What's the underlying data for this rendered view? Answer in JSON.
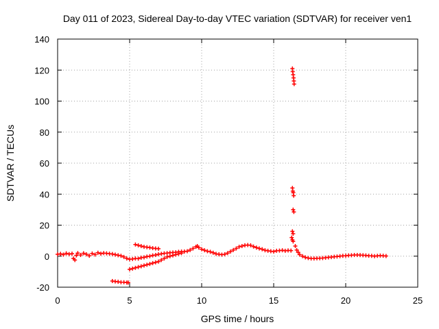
{
  "chart_data": {
    "type": "scatter",
    "title": "Day 011 of 2023, Sidereal Day-to-day VTEC variation (SDTVAR) for receiver ven1",
    "xlabel": "GPS time / hours",
    "ylabel": "SDTVAR / TECUs",
    "xlim": [
      0,
      25
    ],
    "ylim": [
      -20,
      140
    ],
    "xticks": [
      "0",
      "5",
      "10",
      "15",
      "20",
      "25"
    ],
    "yticks": [
      "-20",
      "0",
      "20",
      "40",
      "60",
      "80",
      "100",
      "120",
      "140"
    ],
    "grid": true,
    "marker": "plus",
    "color": "#ff0000",
    "series": [
      {
        "name": "SDTVAR",
        "points": [
          [
            0.0,
            1.2
          ],
          [
            0.2,
            1.5
          ],
          [
            0.4,
            1.0
          ],
          [
            0.6,
            1.8
          ],
          [
            0.8,
            1.3
          ],
          [
            1.0,
            1.6
          ],
          [
            1.1,
            -1.5
          ],
          [
            1.2,
            -2.5
          ],
          [
            1.3,
            0.5
          ],
          [
            1.4,
            2.0
          ],
          [
            1.6,
            0.8
          ],
          [
            1.8,
            1.9
          ],
          [
            2.0,
            1.2
          ],
          [
            2.2,
            0.3
          ],
          [
            2.4,
            1.7
          ],
          [
            2.6,
            1.0
          ],
          [
            2.8,
            2.2
          ],
          [
            3.0,
            1.6
          ],
          [
            3.2,
            2.0
          ],
          [
            3.4,
            1.8
          ],
          [
            3.6,
            1.6
          ],
          [
            3.8,
            1.4
          ],
          [
            4.0,
            1.0
          ],
          [
            4.2,
            0.6
          ],
          [
            4.4,
            0.2
          ],
          [
            4.6,
            -0.5
          ],
          [
            4.8,
            -1.5
          ],
          [
            5.0,
            -2.0
          ],
          [
            5.2,
            -1.8
          ],
          [
            5.4,
            -1.5
          ],
          [
            5.6,
            -1.6
          ],
          [
            5.8,
            -1.0
          ],
          [
            6.0,
            -0.8
          ],
          [
            6.2,
            -0.3
          ],
          [
            6.4,
            0.0
          ],
          [
            6.6,
            0.5
          ],
          [
            6.8,
            0.8
          ],
          [
            7.0,
            1.2
          ],
          [
            7.2,
            1.5
          ],
          [
            7.4,
            1.8
          ],
          [
            7.6,
            2.0
          ],
          [
            7.8,
            2.2
          ],
          [
            8.0,
            2.4
          ],
          [
            8.2,
            2.5
          ],
          [
            8.4,
            2.8
          ],
          [
            8.6,
            3.0
          ],
          [
            8.8,
            3.0
          ],
          [
            9.0,
            3.2
          ],
          [
            9.2,
            4.0
          ],
          [
            9.4,
            5.0
          ],
          [
            9.6,
            6.0
          ],
          [
            9.7,
            6.5
          ],
          [
            9.8,
            5.5
          ],
          [
            10.0,
            4.5
          ],
          [
            10.2,
            3.8
          ],
          [
            10.4,
            3.2
          ],
          [
            10.6,
            2.8
          ],
          [
            10.8,
            2.2
          ],
          [
            11.0,
            1.5
          ],
          [
            11.2,
            1.2
          ],
          [
            11.4,
            1.0
          ],
          [
            11.6,
            1.2
          ],
          [
            11.8,
            2.0
          ],
          [
            12.0,
            3.0
          ],
          [
            12.2,
            4.0
          ],
          [
            12.4,
            5.0
          ],
          [
            12.6,
            6.0
          ],
          [
            12.8,
            6.5
          ],
          [
            13.0,
            7.0
          ],
          [
            13.2,
            7.2
          ],
          [
            13.4,
            7.0
          ],
          [
            13.6,
            6.2
          ],
          [
            13.8,
            5.5
          ],
          [
            14.0,
            5.0
          ],
          [
            14.2,
            4.5
          ],
          [
            14.4,
            3.8
          ],
          [
            14.6,
            3.5
          ],
          [
            14.8,
            3.2
          ],
          [
            15.0,
            3.0
          ],
          [
            15.2,
            3.5
          ],
          [
            15.4,
            3.6
          ],
          [
            15.6,
            3.8
          ],
          [
            15.8,
            3.5
          ],
          [
            16.0,
            3.7
          ],
          [
            16.2,
            3.6
          ],
          [
            16.3,
            121
          ],
          [
            16.32,
            119
          ],
          [
            16.35,
            117
          ],
          [
            16.38,
            115
          ],
          [
            16.4,
            113
          ],
          [
            16.42,
            111
          ],
          [
            16.3,
            44
          ],
          [
            16.33,
            42
          ],
          [
            16.36,
            41
          ],
          [
            16.39,
            39
          ],
          [
            16.35,
            30
          ],
          [
            16.4,
            28.5
          ],
          [
            16.3,
            16
          ],
          [
            16.35,
            14.5
          ],
          [
            16.25,
            12
          ],
          [
            16.3,
            10.5
          ],
          [
            16.35,
            9.5
          ],
          [
            16.5,
            6.5
          ],
          [
            16.6,
            4.0
          ],
          [
            16.7,
            2.5
          ],
          [
            16.8,
            1.0
          ],
          [
            17.0,
            0.0
          ],
          [
            17.2,
            -0.8
          ],
          [
            17.4,
            -1.2
          ],
          [
            17.6,
            -1.5
          ],
          [
            17.8,
            -1.5
          ],
          [
            18.0,
            -1.4
          ],
          [
            18.2,
            -1.3
          ],
          [
            18.4,
            -1.2
          ],
          [
            18.6,
            -1.0
          ],
          [
            18.8,
            -0.8
          ],
          [
            19.0,
            -0.6
          ],
          [
            19.2,
            -0.4
          ],
          [
            19.4,
            -0.2
          ],
          [
            19.6,
            0.0
          ],
          [
            19.8,
            0.2
          ],
          [
            20.0,
            0.3
          ],
          [
            20.2,
            0.5
          ],
          [
            20.4,
            0.6
          ],
          [
            20.6,
            0.8
          ],
          [
            20.8,
            0.8
          ],
          [
            21.0,
            0.7
          ],
          [
            21.2,
            0.6
          ],
          [
            21.4,
            0.5
          ],
          [
            21.6,
            0.3
          ],
          [
            21.8,
            0.2
          ],
          [
            22.0,
            0.0
          ],
          [
            22.2,
            0.2
          ],
          [
            22.4,
            0.4
          ],
          [
            22.6,
            0.3
          ],
          [
            22.8,
            0.1
          ],
          [
            5.4,
            7.5
          ],
          [
            5.6,
            7.0
          ],
          [
            5.8,
            6.5
          ],
          [
            6.0,
            6.0
          ],
          [
            6.2,
            5.8
          ],
          [
            6.4,
            5.5
          ],
          [
            6.6,
            5.2
          ],
          [
            6.8,
            5.0
          ],
          [
            7.0,
            4.8
          ],
          [
            5.0,
            -8.5
          ],
          [
            5.2,
            -8.0
          ],
          [
            5.4,
            -7.5
          ],
          [
            5.6,
            -7.0
          ],
          [
            5.8,
            -6.5
          ],
          [
            6.0,
            -6.0
          ],
          [
            6.2,
            -5.5
          ],
          [
            6.4,
            -5.0
          ],
          [
            6.6,
            -4.5
          ],
          [
            6.8,
            -4.0
          ],
          [
            7.0,
            -3.5
          ],
          [
            7.2,
            -2.5
          ],
          [
            7.4,
            -1.5
          ],
          [
            7.6,
            -0.5
          ],
          [
            7.8,
            0.0
          ],
          [
            8.0,
            0.5
          ],
          [
            8.2,
            1.0
          ],
          [
            8.4,
            1.5
          ],
          [
            8.6,
            2.0
          ],
          [
            3.8,
            -16
          ],
          [
            4.0,
            -16.3
          ],
          [
            4.2,
            -16.5
          ],
          [
            4.4,
            -16.8
          ],
          [
            4.6,
            -16.8
          ],
          [
            4.8,
            -17.0
          ],
          [
            4.9,
            -17.0
          ]
        ]
      }
    ]
  }
}
